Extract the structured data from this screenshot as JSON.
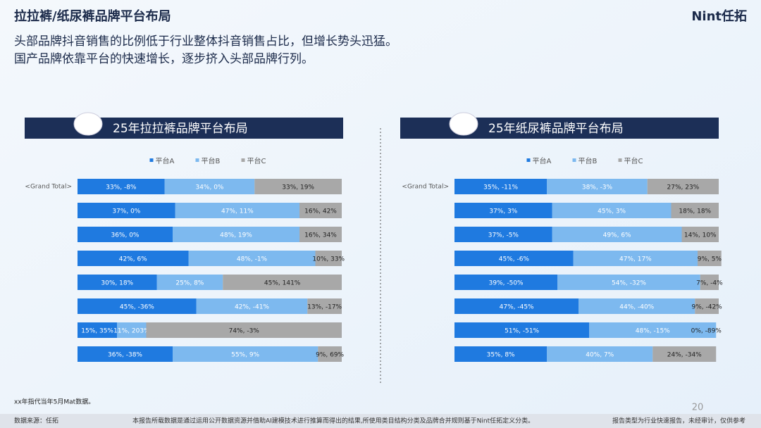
{
  "header": {
    "title": "拉拉裤/纸尿裤品牌平台布局",
    "subtitle_lines": [
      "头部品牌抖音销售的比例低于行业整体抖音销售占比，但增长势头迅猛。",
      "国产品牌依靠平台的快速增长，逐步挤入头部品牌行列。"
    ],
    "logo": "Nint任拓"
  },
  "chart_data": [
    {
      "type": "bar",
      "orientation": "horizontal",
      "stacked": true,
      "title": "25年拉拉裤品牌平台布局",
      "categories": [
        "<Grand Total>",
        null,
        null,
        null,
        null,
        null,
        null,
        null
      ],
      "xlim": [
        0,
        100
      ],
      "legend": "top",
      "series": [
        {
          "name": "平台A",
          "color": "#1f7ae0",
          "values": [
            33,
            37,
            36,
            42,
            30,
            45,
            15,
            36
          ],
          "value_labels": [
            "33%, -8%",
            "37%, 0%",
            "36%, 0%",
            "42%, 6%",
            "30%, 18%",
            "45%, -36%",
            "15%, 35%",
            "36%, -38%"
          ]
        },
        {
          "name": "平台B",
          "color": "#7db9ef",
          "values": [
            34,
            47,
            48,
            48,
            25,
            42,
            11,
            55
          ],
          "value_labels": [
            "34%, 0%",
            "47%, 11%",
            "48%, 19%",
            "48%, -1%",
            "25%, 8%",
            "42%, -41%",
            "11%, 203%",
            "55%, 9%"
          ]
        },
        {
          "name": "平台C",
          "color": "#a8a8a8",
          "values": [
            33,
            16,
            16,
            10,
            45,
            13,
            74,
            9
          ],
          "value_labels": [
            "33%, 19%",
            "16%, 42%",
            "16%, 34%",
            "10%, 33%",
            "45%, 141%",
            "13%, -17%",
            "74%, -3%",
            "9%, 69%"
          ]
        }
      ]
    },
    {
      "type": "bar",
      "orientation": "horizontal",
      "stacked": true,
      "title": "25年纸尿裤品牌平台布局",
      "categories": [
        "<Grand Total>",
        null,
        null,
        null,
        null,
        null,
        null,
        null
      ],
      "xlim": [
        0,
        100
      ],
      "legend": "top",
      "series": [
        {
          "name": "平台A",
          "color": "#1f7ae0",
          "values": [
            35,
            37,
            37,
            45,
            39,
            47,
            51,
            35
          ],
          "value_labels": [
            "35%, -11%",
            "37%, 3%",
            "37%, -5%",
            "45%, -6%",
            "39%, -50%",
            "47%, -45%",
            "51%, -51%",
            "35%, 8%"
          ]
        },
        {
          "name": "平台B",
          "color": "#7db9ef",
          "values": [
            38,
            45,
            49,
            47,
            54,
            44,
            48,
            40
          ],
          "value_labels": [
            "38%, -3%",
            "45%, 3%",
            "49%, 6%",
            "47%, 17%",
            "54%, -32%",
            "44%, -40%",
            "48%, -15%",
            "40%, 7%"
          ]
        },
        {
          "name": "平台C",
          "color": "#a8a8a8",
          "values": [
            27,
            18,
            14,
            9,
            7,
            9,
            0,
            24
          ],
          "value_labels": [
            "27%, 23%",
            "18%, 18%",
            "14%, 10%",
            "9%, 5%",
            "7%, -4%",
            "9%, -42%",
            "0%, -89%",
            "24%, -34%"
          ]
        }
      ]
    }
  ],
  "footer": {
    "note": "xx年指代当年5月Mat数据。",
    "source": "数据来源：任拓",
    "disclaimer": "本报告所载数据是通过运用公开数据资源并借助AI建模技术进行推算而得出的结果,所使用类目结构分类及品牌合并规则基于Nint任拓定义分类。",
    "report_type": "报告类型为行业快速报告，未经审计，仅供参考",
    "page": "20"
  }
}
